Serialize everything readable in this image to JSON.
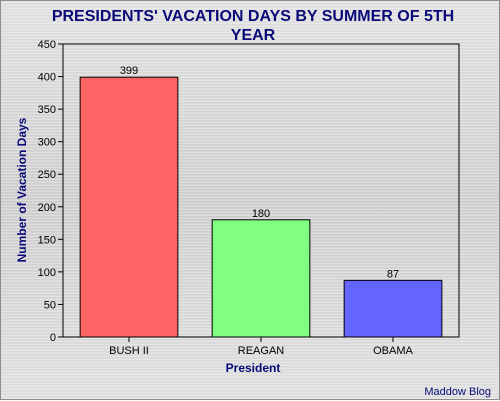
{
  "chart_data": {
    "type": "bar",
    "title_lines": [
      "PRESIDENTS' VACATION DAYS BY SUMMER OF 5TH",
      "YEAR"
    ],
    "xlabel": "President",
    "ylabel": "Number of Vacation Days",
    "categories": [
      "BUSH II",
      "REAGAN",
      "OBAMA"
    ],
    "values": [
      399,
      180,
      87
    ],
    "data_labels": [
      "399",
      "180",
      "87"
    ],
    "colors": [
      "#ff6464",
      "#80ff80",
      "#6464ff"
    ],
    "ylim": [
      0,
      450
    ],
    "yticks": [
      0,
      50,
      100,
      150,
      200,
      250,
      300,
      350,
      400,
      450
    ],
    "grid": false,
    "legend": "none"
  },
  "credit": "Maddow Blog"
}
